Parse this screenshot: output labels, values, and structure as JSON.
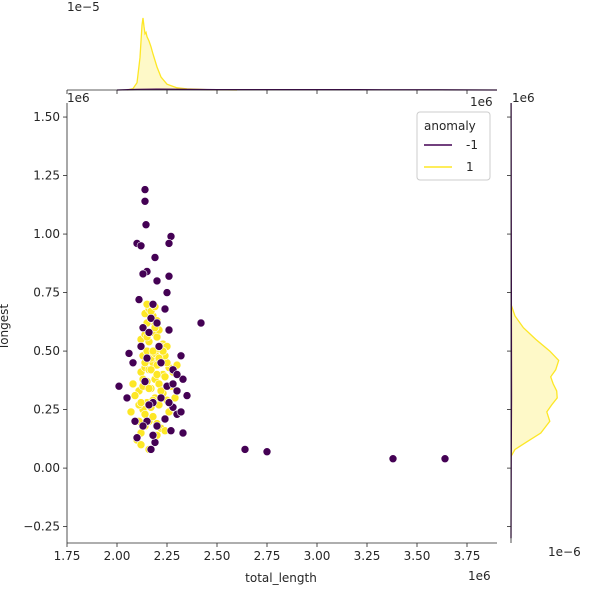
{
  "chart_data": {
    "type": "scatter",
    "title": "",
    "xlabel": "total_length",
    "ylabel": "longest",
    "x_offset_text": "1e6",
    "y_offset_text": "1e6",
    "top_marginal_offset_text": "1e−5",
    "right_marginal_offset_text": "1e−6",
    "x_ticks": [
      1.75,
      2.0,
      2.25,
      2.5,
      2.75,
      3.0,
      3.25,
      3.5,
      3.75
    ],
    "x_tick_labels": [
      "1.75",
      "2.00",
      "2.25",
      "2.50",
      "2.75",
      "3.00",
      "3.25",
      "3.50",
      "3.75"
    ],
    "y_ticks": [
      -0.25,
      0.0,
      0.25,
      0.5,
      0.75,
      1.0,
      1.25,
      1.5
    ],
    "y_tick_labels": [
      "−0.25",
      "0.00",
      "0.25",
      "0.50",
      "0.75",
      "1.00",
      "1.25",
      "1.50"
    ],
    "xlim": [
      1.75,
      3.9
    ],
    "ylim": [
      -0.32,
      1.56
    ],
    "grid": false,
    "legend": {
      "title": "anomaly",
      "placement": "top-right",
      "entries": [
        {
          "label": "-1",
          "color": "#440154"
        },
        {
          "label": "1",
          "color": "#fde725"
        }
      ]
    },
    "series": [
      {
        "name": "-1",
        "color": "#440154",
        "x": [
          2.14,
          2.14,
          2.145,
          2.1,
          2.12,
          2.27,
          2.26,
          2.19,
          2.15,
          2.13,
          2.26,
          2.2,
          2.25,
          2.11,
          2.18,
          2.24,
          2.17,
          2.2,
          2.13,
          2.26,
          2.16,
          2.42,
          2.06,
          2.32,
          2.08,
          2.01,
          2.33,
          2.25,
          2.3,
          2.35,
          2.22,
          2.18,
          2.28,
          2.3,
          2.15,
          2.2,
          2.27,
          2.33,
          2.1,
          2.17,
          2.05,
          2.12,
          2.64,
          2.75,
          3.38,
          3.64,
          2.28,
          2.22,
          2.16,
          2.3,
          2.13,
          2.24,
          2.19,
          2.28,
          2.21,
          2.32,
          2.15,
          2.26,
          2.18,
          2.14,
          2.09
        ],
        "y": [
          1.19,
          1.14,
          1.04,
          0.96,
          0.95,
          0.99,
          0.96,
          0.9,
          0.84,
          0.83,
          0.82,
          0.8,
          0.75,
          0.72,
          0.7,
          0.68,
          0.64,
          0.62,
          0.6,
          0.59,
          0.58,
          0.62,
          0.49,
          0.48,
          0.45,
          0.35,
          0.38,
          0.35,
          0.33,
          0.31,
          0.3,
          0.28,
          0.26,
          0.23,
          0.2,
          0.18,
          0.16,
          0.15,
          0.13,
          0.08,
          0.3,
          0.52,
          0.08,
          0.07,
          0.04,
          0.04,
          0.42,
          0.45,
          0.27,
          0.4,
          0.18,
          0.21,
          0.11,
          0.36,
          0.52,
          0.24,
          0.47,
          0.28,
          0.14,
          0.37,
          0.2
        ]
      },
      {
        "name": "1",
        "color": "#fde725",
        "x": [
          2.1,
          2.12,
          2.14,
          2.16,
          2.18,
          2.2,
          2.22,
          2.24,
          2.26,
          2.13,
          2.15,
          2.17,
          2.19,
          2.21,
          2.23,
          2.25,
          2.11,
          2.13,
          2.15,
          2.17,
          2.19,
          2.21,
          2.23,
          2.12,
          2.14,
          2.16,
          2.18,
          2.2,
          2.22,
          2.24,
          2.26,
          2.28,
          2.09,
          2.11,
          2.13,
          2.15,
          2.17,
          2.19,
          2.21,
          2.23,
          2.25,
          2.12,
          2.14,
          2.16,
          2.18,
          2.2,
          2.22,
          2.24,
          2.13,
          2.15,
          2.17,
          2.19,
          2.21,
          2.14,
          2.16,
          2.18,
          2.2,
          2.15,
          2.17,
          2.19,
          2.27,
          2.29,
          2.3,
          2.08,
          2.07,
          2.12,
          2.16,
          2.2,
          2.24,
          2.14,
          2.18,
          2.22,
          2.13,
          2.17,
          2.21,
          2.25,
          2.15,
          2.19,
          2.23,
          2.11,
          2.16,
          2.2,
          2.14,
          2.18,
          2.12
        ],
        "y": [
          0.12,
          0.15,
          0.18,
          0.2,
          0.22,
          0.19,
          0.17,
          0.21,
          0.24,
          0.25,
          0.28,
          0.26,
          0.3,
          0.27,
          0.32,
          0.29,
          0.33,
          0.35,
          0.37,
          0.34,
          0.38,
          0.36,
          0.4,
          0.41,
          0.43,
          0.42,
          0.45,
          0.44,
          0.46,
          0.39,
          0.43,
          0.41,
          0.31,
          0.27,
          0.48,
          0.5,
          0.47,
          0.49,
          0.51,
          0.53,
          0.45,
          0.55,
          0.57,
          0.54,
          0.58,
          0.56,
          0.52,
          0.48,
          0.6,
          0.62,
          0.64,
          0.61,
          0.59,
          0.66,
          0.68,
          0.65,
          0.63,
          0.7,
          0.67,
          0.69,
          0.35,
          0.3,
          0.44,
          0.36,
          0.24,
          0.1,
          0.08,
          0.14,
          0.16,
          0.23,
          0.29,
          0.33,
          0.38,
          0.42,
          0.47,
          0.52,
          0.56,
          0.6,
          0.5,
          0.2,
          0.34,
          0.4,
          0.45,
          0.5,
          0.28
        ]
      }
    ],
    "marginal_x_kde": {
      "series": [
        {
          "name": "1",
          "x": [
            2.05,
            2.08,
            2.1,
            2.115,
            2.125,
            2.13,
            2.135,
            2.14,
            2.145,
            2.15,
            2.16,
            2.17,
            2.18,
            2.2,
            2.22,
            2.25,
            2.3,
            2.35,
            2.45,
            2.6
          ],
          "density": [
            0.0,
            0.02,
            0.1,
            0.45,
            0.9,
            1.0,
            0.88,
            0.78,
            0.8,
            0.74,
            0.68,
            0.6,
            0.5,
            0.32,
            0.18,
            0.08,
            0.03,
            0.015,
            0.005,
            0.0
          ]
        },
        {
          "name": "-1",
          "x": [
            2.0,
            2.1,
            2.2,
            2.3,
            2.5,
            2.8,
            3.2,
            3.6,
            3.9
          ],
          "density": [
            0.0,
            0.008,
            0.012,
            0.01,
            0.006,
            0.005,
            0.004,
            0.003,
            0.0
          ]
        }
      ]
    },
    "marginal_y_kde": {
      "series": [
        {
          "name": "1",
          "y": [
            0.05,
            0.08,
            0.11,
            0.15,
            0.2,
            0.24,
            0.27,
            0.3,
            0.33,
            0.36,
            0.39,
            0.42,
            0.46,
            0.5,
            0.55,
            0.6,
            0.65,
            0.7
          ],
          "density": [
            0.0,
            0.08,
            0.3,
            0.6,
            0.78,
            0.72,
            0.82,
            0.93,
            0.92,
            0.85,
            0.8,
            0.9,
            0.96,
            0.78,
            0.5,
            0.25,
            0.08,
            0.0
          ]
        },
        {
          "name": "-1",
          "y": [
            -0.3,
            0.0,
            0.3,
            0.6,
            0.9,
            1.2,
            1.56
          ],
          "density": [
            0.0,
            0.004,
            0.01,
            0.008,
            0.006,
            0.004,
            0.002
          ]
        }
      ]
    }
  }
}
